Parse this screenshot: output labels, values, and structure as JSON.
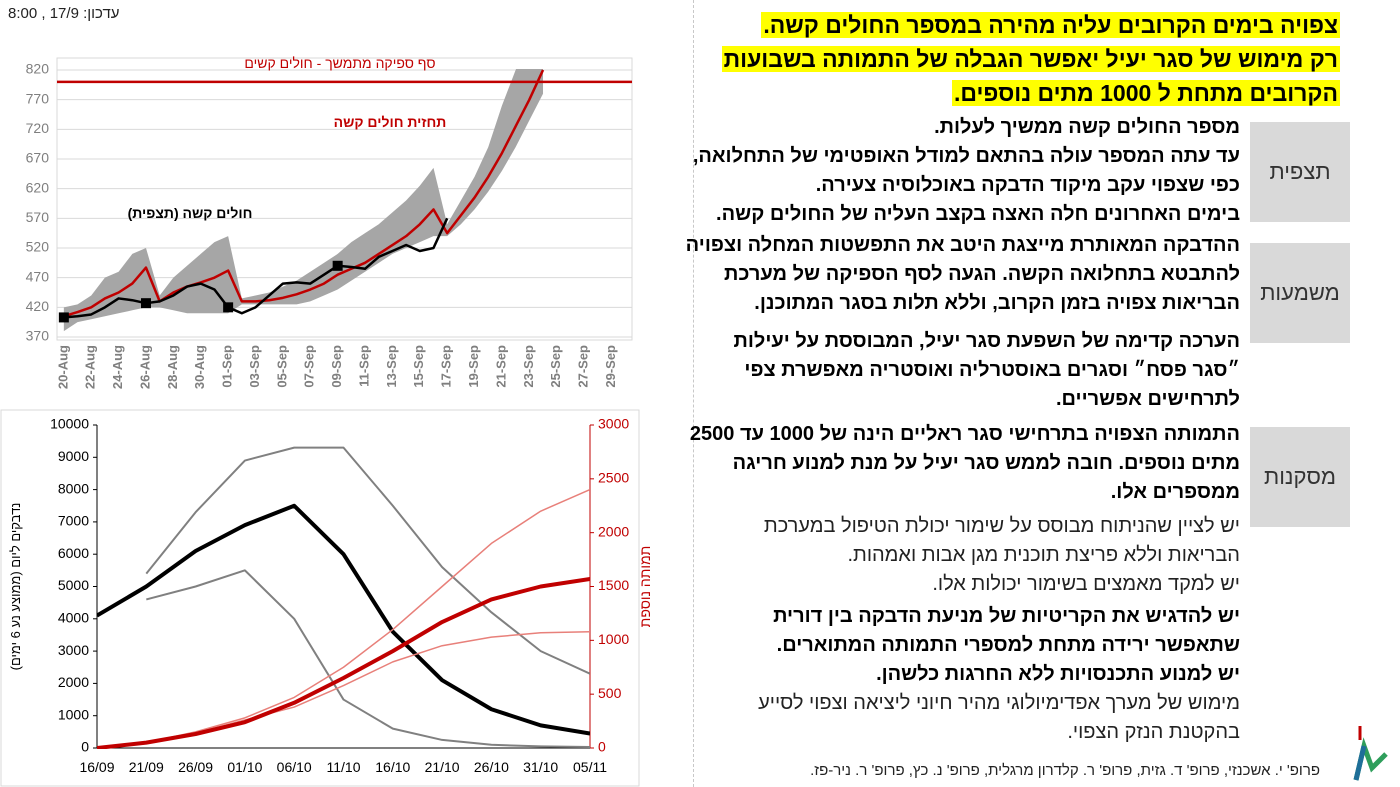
{
  "update": "עדכון: 17/9 , 8:00",
  "header": {
    "lines": [
      "צפויה בימים הקרובים עליה מהירה במספר החולים קשה.",
      "רק מימוש של סגר יעיל יאפשר הגבלה של התמותה בשבועות",
      "הקרובים מתחת ל 1000 מתים נוספים."
    ]
  },
  "sections": [
    {
      "label": "תצפית",
      "paragraphs": [
        {
          "bold": true,
          "lines": [
            "מספר החולים קשה ממשיך לעלות.",
            "עד עתה המספר עולה בהתאם למודל האופטימי של התחלואה,",
            "כפי שצפוי עקב מיקוד הדבקה באוכלוסיה צעירה.",
            "בימים האחרונים חלה האצה בקצב העליה של החולים קשה."
          ]
        }
      ]
    },
    {
      "label": "משמעות",
      "paragraphs": [
        {
          "bold": true,
          "lines": [
            "ההדבקה המאותרת מייצגת היטב את התפשטות המחלה וצפויה",
            "להתבטא בתחלואה הקשה. הגעה לסף הספיקה של מערכת",
            "הבריאות צפויה בזמן הקרוב, וללא תלות בסגר המתוכנן."
          ]
        },
        {
          "bold": true,
          "lines": [
            "הערכה קדימה של השפעת סגר יעיל, המבוססת על יעילות",
            "״סגר פסח״ וסגרים באוסטרליה ואוסטריה מאפשרת צפי",
            "לתרחישים אפשריים."
          ]
        }
      ]
    },
    {
      "label": "מסקנות",
      "paragraphs": [
        {
          "bold": true,
          "lines": [
            "התמותה הצפויה בתרחישי סגר ראליים הינה של 1000 עד 2500",
            "מתים נוספים. חובה לממש סגר יעיל על מנת למנוע חריגה",
            "ממספרים אלו."
          ]
        },
        {
          "bold": false,
          "lines": [
            "יש לציין שהניתוח מבוסס על שימור יכולת הטיפול במערכת",
            "הבריאות וללא פריצת תוכנית מגן אבות ואמהות.",
            "יש למקד מאמצים בשימור יכולות אלו."
          ]
        },
        {
          "bold": true,
          "lines": [
            "יש להדגיש את הקריטיות של מניעת הדבקה בין דורית",
            "שתאפשר ירידה מתחת למספרי התמותה המתוארים.",
            "יש למנוע התכנסויות ללא החרגות כלשהן."
          ]
        },
        {
          "bold": false,
          "lines": [
            "מימוש של מערך אפדימיולוגי מהיר חיוני ליציאה וצפוי לסייע",
            "בהקטנת הנזק הצפוי."
          ]
        }
      ]
    }
  ],
  "footer": "פרופ' י. אשכנזי, פרופ' ד. גזית, פרופ' ר. קלדרון מרגלית, פרופ' נ. כץ, פרופ' ר. ניר-פז.",
  "chart_data": [
    {
      "type": "line",
      "categories": [
        "20-Aug",
        null,
        "22-Aug",
        null,
        "24-Aug",
        null,
        "26-Aug",
        null,
        "28-Aug",
        null,
        "30-Aug",
        null,
        "01-Sep",
        null,
        "03-Sep",
        null,
        "05-Sep",
        null,
        "07-Sep",
        null,
        "09-Sep",
        null,
        "11-Sep",
        null,
        "13-Sep",
        null,
        "15-Sep",
        null,
        "17-Sep",
        null,
        "19-Sep",
        null,
        "21-Sep",
        null,
        "23-Sep",
        null,
        "25-Sep",
        null,
        "27-Sep",
        null,
        "29-Sep",
        null
      ],
      "ylim": [
        370,
        820
      ],
      "yticks": [
        370,
        420,
        470,
        520,
        570,
        620,
        670,
        720,
        770,
        820
      ],
      "grid": true,
      "band": {
        "color": "#a6a6a6",
        "upper": [
          420,
          425,
          440,
          470,
          480,
          510,
          520,
          440,
          470,
          490,
          510,
          530,
          540,
          435,
          440,
          445,
          455,
          465,
          480,
          495,
          510,
          530,
          545,
          560,
          580,
          600,
          625,
          655,
          560,
          600,
          640,
          690,
          760,
          820,
          880,
          940,
          null,
          null,
          null,
          null,
          null,
          null
        ],
        "lower": [
          380,
          395,
          400,
          405,
          410,
          415,
          420,
          420,
          415,
          410,
          410,
          410,
          410,
          425,
          425,
          425,
          425,
          425,
          430,
          440,
          450,
          465,
          480,
          495,
          510,
          520,
          530,
          540,
          540,
          560,
          585,
          615,
          650,
          690,
          735,
          780,
          null,
          null,
          null,
          null,
          null,
          null
        ]
      },
      "series": [
        {
          "color": "#000000",
          "values": [
            403,
            405,
            408,
            420,
            435,
            432,
            427,
            430,
            440,
            455,
            460,
            450,
            420,
            410,
            420,
            440,
            460,
            462,
            460,
            475,
            490,
            488,
            485,
            505,
            515,
            525,
            515,
            520,
            570,
            null,
            null,
            null,
            null,
            null,
            null,
            null,
            null,
            null,
            null,
            null,
            null,
            null
          ]
        },
        {
          "color": "#c00000",
          "values": [
            405,
            412,
            420,
            435,
            445,
            460,
            487,
            430,
            445,
            455,
            462,
            470,
            482,
            430,
            430,
            432,
            436,
            442,
            450,
            460,
            475,
            485,
            495,
            510,
            525,
            540,
            560,
            585,
            545,
            575,
            605,
            640,
            680,
            725,
            770,
            820,
            null,
            null,
            null,
            null,
            null,
            null
          ]
        }
      ],
      "markers": [
        0,
        6,
        12,
        20
      ],
      "threshold": {
        "value": 800,
        "label": "סף ספיקה מתמשך - חולים קשים",
        "color": "#c00000"
      },
      "annotations": [
        {
          "text": "תחזית חולים קשה",
          "color": "#c00000"
        },
        {
          "text": "חולים קשה  (תצפית)",
          "color": "#000000"
        }
      ]
    },
    {
      "type": "line",
      "categories": [
        "16/09",
        "21/09",
        "26/09",
        "01/10",
        "06/10",
        "11/10",
        "16/10",
        "21/10",
        "26/10",
        "31/10",
        "05/11"
      ],
      "ylim": [
        0,
        10000
      ],
      "yticks": [
        0,
        1000,
        2000,
        3000,
        4000,
        5000,
        6000,
        7000,
        8000,
        9000,
        10000
      ],
      "y2lim": [
        0,
        3000
      ],
      "y2ticks": [
        0,
        500,
        1000,
        1500,
        2000,
        2500,
        3000
      ],
      "y2color": "#c00000",
      "ylabel": "נדבקים ליום (ממוצע נע 6 ימים)",
      "y2label": "תמותה נוספת",
      "grid": false,
      "series": [
        {
          "color": "#808080",
          "values": [
            null,
            5400,
            7300,
            8900,
            9300,
            9300,
            7500,
            5600,
            4200,
            3000,
            2300
          ]
        },
        {
          "color": "#808080",
          "values": [
            null,
            4600,
            5000,
            5500,
            4000,
            1500,
            600,
            250,
            100,
            50,
            30
          ]
        },
        {
          "color": "#000000",
          "values": [
            4100,
            5000,
            6100,
            6900,
            7500,
            6000,
            3600,
            2100,
            1200,
            700,
            450
          ]
        },
        {
          "color": "#e8807a",
          "axis": "y2",
          "values": [
            0,
            50,
            150,
            280,
            470,
            750,
            1100,
            1500,
            1900,
            2200,
            2400
          ]
        },
        {
          "color": "#e8807a",
          "axis": "y2",
          "values": [
            0,
            50,
            140,
            260,
            380,
            580,
            800,
            950,
            1030,
            1070,
            1080
          ]
        },
        {
          "color": "#c00000",
          "axis": "y2",
          "values": [
            0,
            50,
            130,
            240,
            420,
            650,
            900,
            1170,
            1380,
            1500,
            1570
          ]
        }
      ]
    }
  ]
}
